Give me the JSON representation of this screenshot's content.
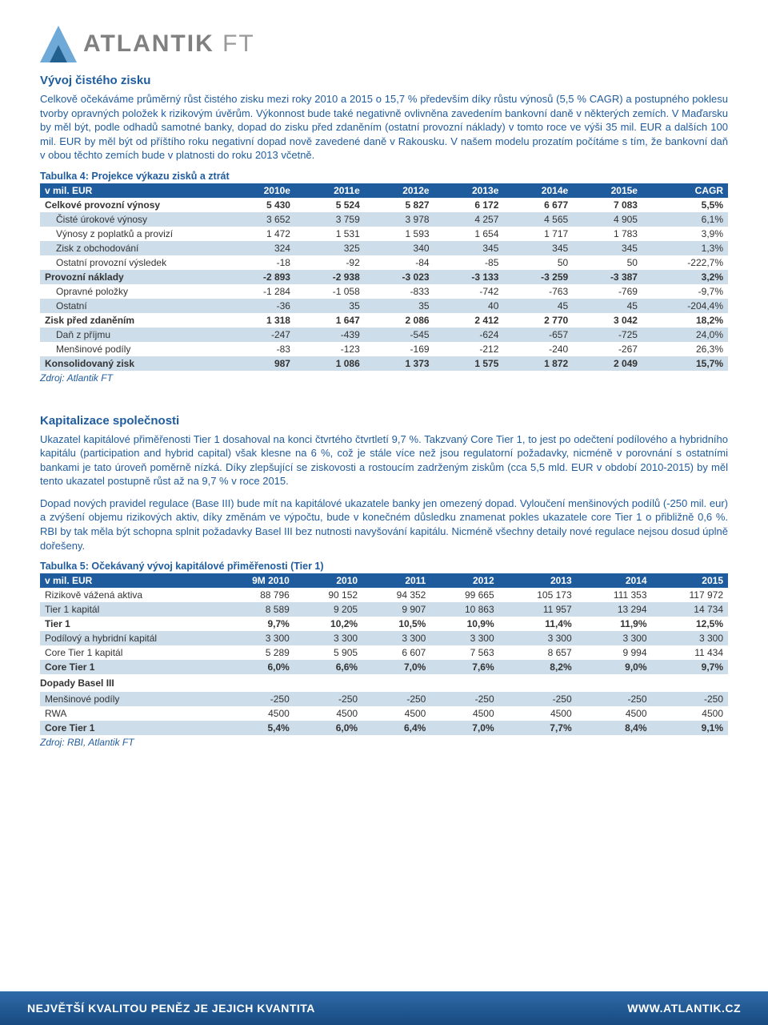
{
  "logo": {
    "brand": "ATLANTIK",
    "suffix": " FT"
  },
  "section1": {
    "title": "Vývoj čistého zisku",
    "p1": "Celkově očekáváme průměrný růst čistého zisku mezi roky 2010 a 2015 o 15,7 % především díky růstu výnosů (5,5 % CAGR) a postupného poklesu tvorby opravných položek k rizikovým úvěrům. Výkonnost bude také negativně ovlivněna zavedením bankovní daně v některých zemích. V Maďarsku by měl být, podle odhadů samotné banky, dopad do zisku před zdaněním (ostatní provozní náklady) v tomto roce ve výši 35 mil. EUR a dalších 100 mil. EUR by měl být od příštího roku negativní dopad nově zavedené daně v Rakousku. V našem modelu prozatím počítáme s tím, že bankovní daň v obou těchto zemích bude v platnosti do roku 2013 včetně."
  },
  "table4": {
    "caption": "Tabulka 4: Projekce výkazu zisků a ztrát",
    "headers": [
      "v mil. EUR",
      "2010e",
      "2011e",
      "2012e",
      "2013e",
      "2014e",
      "2015e",
      "CAGR"
    ],
    "rows": [
      {
        "label": "Celkové provozní výnosy",
        "v": [
          "5 430",
          "5 524",
          "5 827",
          "6 172",
          "6 677",
          "7 083",
          "5,5%"
        ],
        "bold": true,
        "band": false,
        "indent": 0
      },
      {
        "label": "Čisté úrokové výnosy",
        "v": [
          "3 652",
          "3 759",
          "3 978",
          "4 257",
          "4 565",
          "4 905",
          "6,1%"
        ],
        "bold": false,
        "band": true,
        "indent": 1
      },
      {
        "label": "Výnosy z poplatků a provizí",
        "v": [
          "1 472",
          "1 531",
          "1 593",
          "1 654",
          "1 717",
          "1 783",
          "3,9%"
        ],
        "bold": false,
        "band": false,
        "indent": 1
      },
      {
        "label": "Zisk z obchodování",
        "v": [
          "324",
          "325",
          "340",
          "345",
          "345",
          "345",
          "1,3%"
        ],
        "bold": false,
        "band": true,
        "indent": 1
      },
      {
        "label": "Ostatní provozní výsledek",
        "v": [
          "-18",
          "-92",
          "-84",
          "-85",
          "50",
          "50",
          "-222,7%"
        ],
        "bold": false,
        "band": false,
        "indent": 1
      },
      {
        "label": "Provozní náklady",
        "v": [
          "-2 893",
          "-2 938",
          "-3 023",
          "-3 133",
          "-3 259",
          "-3 387",
          "3,2%"
        ],
        "bold": true,
        "band": true,
        "indent": 0
      },
      {
        "label": "Opravné položky",
        "v": [
          "-1 284",
          "-1 058",
          "-833",
          "-742",
          "-763",
          "-769",
          "-9,7%"
        ],
        "bold": false,
        "band": false,
        "indent": 1
      },
      {
        "label": "Ostatní",
        "v": [
          "-36",
          "35",
          "35",
          "40",
          "45",
          "45",
          "-204,4%"
        ],
        "bold": false,
        "band": true,
        "indent": 1
      },
      {
        "label": "Zisk před zdaněním",
        "v": [
          "1 318",
          "1 647",
          "2 086",
          "2 412",
          "2 770",
          "3 042",
          "18,2%"
        ],
        "bold": true,
        "band": false,
        "indent": 0
      },
      {
        "label": "Daň z příjmu",
        "v": [
          "-247",
          "-439",
          "-545",
          "-624",
          "-657",
          "-725",
          "24,0%"
        ],
        "bold": false,
        "band": true,
        "indent": 1
      },
      {
        "label": "Menšinové podíly",
        "v": [
          "-83",
          "-123",
          "-169",
          "-212",
          "-240",
          "-267",
          "26,3%"
        ],
        "bold": false,
        "band": false,
        "indent": 1
      },
      {
        "label": "Konsolidovaný zisk",
        "v": [
          "987",
          "1 086",
          "1 373",
          "1 575",
          "1 872",
          "2 049",
          "15,7%"
        ],
        "bold": true,
        "band": true,
        "indent": 0
      }
    ],
    "source": "Zdroj: Atlantik FT"
  },
  "section2": {
    "title": "Kapitalizace společnosti",
    "p1": "Ukazatel kapitálové přiměřenosti Tier 1 dosahoval na konci čtvrtého čtvrtletí 9,7 %. Takzvaný Core Tier 1, to jest po odečtení podílového a hybridního kapitálu (participation and hybrid capital) však klesne na 6 %, což je stále více než jsou regulatorní požadavky, nicméně v porovnání s ostatními bankami je tato úroveň poměrně nízká. Díky zlepšující se ziskovosti a rostoucím zadrženým ziskům (cca 5,5 mld. EUR v období 2010-2015) by měl tento ukazatel postupně růst až na 9,7 % v roce 2015.",
    "p2": "Dopad nových pravidel regulace (Base III) bude mít na kapitálové ukazatele banky jen omezený dopad. Vyloučení menšinových podílů (-250 mil. eur) a zvýšení objemu rizikových aktiv, díky změnám ve výpočtu, bude v konečném důsledku znamenat pokles ukazatele core Tier 1 o přibližně 0,6 %. RBI by tak měla být schopna splnit požadavky Basel III bez nutnosti navyšování kapitálu. Nicméně všechny detaily nové regulace nejsou dosud úplně dořešeny."
  },
  "table5": {
    "caption": "Tabulka 5: Očekávaný vývoj kapitálové přiměřenosti (Tier 1)",
    "headers": [
      "v mil. EUR",
      "9M 2010",
      "2010",
      "2011",
      "2012",
      "2013",
      "2014",
      "2015"
    ],
    "rows1": [
      {
        "label": "Rizikově vážená aktiva",
        "v": [
          "88 796",
          "90 152",
          "94 352",
          "99 665",
          "105 173",
          "111 353",
          "117 972"
        ],
        "bold": false,
        "band": false
      },
      {
        "label": "Tier 1 kapitál",
        "v": [
          "8 589",
          "9 205",
          "9 907",
          "10 863",
          "11 957",
          "13 294",
          "14 734"
        ],
        "bold": false,
        "band": true
      },
      {
        "label": "Tier 1",
        "v": [
          "9,7%",
          "10,2%",
          "10,5%",
          "10,9%",
          "11,4%",
          "11,9%",
          "12,5%"
        ],
        "bold": true,
        "band": false
      },
      {
        "label": "Podílový a hybridní kapitál",
        "v": [
          "3 300",
          "3 300",
          "3 300",
          "3 300",
          "3 300",
          "3 300",
          "3 300"
        ],
        "bold": false,
        "band": true
      },
      {
        "label": "Core Tier 1 kapitál",
        "v": [
          "5 289",
          "5 905",
          "6 607",
          "7 563",
          "8 657",
          "9 994",
          "11 434"
        ],
        "bold": false,
        "band": false
      },
      {
        "label": "Core Tier 1",
        "v": [
          "6,0%",
          "6,6%",
          "7,0%",
          "7,6%",
          "8,2%",
          "9,0%",
          "9,7%"
        ],
        "bold": true,
        "band": true
      }
    ],
    "sub": "Dopady Basel III",
    "rows2": [
      {
        "label": "Menšinové podíly",
        "v": [
          "-250",
          "-250",
          "-250",
          "-250",
          "-250",
          "-250",
          "-250"
        ],
        "bold": false,
        "band": true
      },
      {
        "label": "RWA",
        "v": [
          "4500",
          "4500",
          "4500",
          "4500",
          "4500",
          "4500",
          "4500"
        ],
        "bold": false,
        "band": false
      },
      {
        "label": "Core Tier 1",
        "v": [
          "5,4%",
          "6,0%",
          "6,4%",
          "7,0%",
          "7,7%",
          "8,4%",
          "9,1%"
        ],
        "bold": true,
        "band": true
      }
    ],
    "source": "Zdroj: RBI, Atlantik FT"
  },
  "footer": {
    "left": "NEJVĚTŠÍ KVALITOU PENĚZ JE JEJICH KVANTITA",
    "right": "WWW.ATLANTIK.CZ"
  },
  "colors": {
    "header_bg": "#1f5c9e",
    "band_bg": "#cdddea",
    "text_blue": "#1f5c9e",
    "footer_grad_top": "#2f6aa8",
    "footer_grad_bot": "#174a80",
    "logo_gray": "#808080"
  },
  "colwidths": {
    "t4_first": "27%",
    "t5_first": "25%"
  }
}
